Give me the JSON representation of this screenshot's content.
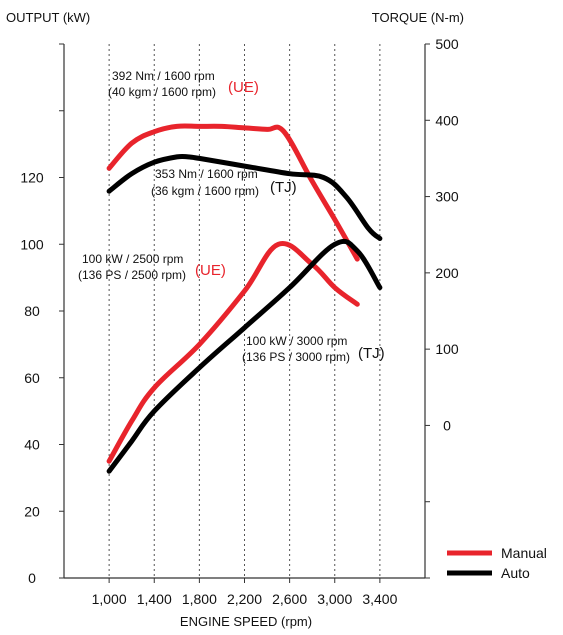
{
  "chart_data": {
    "type": "line",
    "title": "",
    "xlabel": "ENGINE SPEED (rpm)",
    "ylabel_left": "OUTPUT (kW)",
    "ylabel_right": "TORQUE (N-m)",
    "x_ticks": [
      "1,000",
      "1,400",
      "1,800",
      "2,200",
      "2,600",
      "3,000",
      "3,400"
    ],
    "x_range": [
      600,
      3800
    ],
    "y_left_ticks": [
      "0",
      "20",
      "40",
      "60",
      "80",
      "100",
      "120"
    ],
    "y_left_range": [
      0,
      160
    ],
    "y_right_ticks": [
      "0",
      "100",
      "200",
      "300",
      "400",
      "500"
    ],
    "y_right_range": [
      -200,
      500
    ],
    "grid": "vertical",
    "legend_position": "bottom-right",
    "colors": {
      "manual": "#e8242c",
      "auto": "#000000"
    },
    "series": [
      {
        "name": "Manual",
        "color": "#e8242c",
        "axis": "right",
        "x": [
          1000,
          1200,
          1400,
          1600,
          1800,
          2000,
          2200,
          2400,
          2550,
          2800,
          3000,
          3200
        ],
        "y": [
          337,
          370,
          385,
          392,
          392,
          392,
          390,
          388,
          385,
          320,
          270,
          218
        ]
      },
      {
        "name": "Auto",
        "color": "#000000",
        "axis": "right",
        "x": [
          1000,
          1200,
          1400,
          1600,
          1700,
          1800,
          2200,
          2600,
          2900,
          3100,
          3300,
          3400
        ],
        "y": [
          307,
          330,
          345,
          352,
          352,
          350,
          340,
          330,
          325,
          300,
          258,
          245
        ]
      },
      {
        "name": "Manual",
        "color": "#e8242c",
        "axis": "left",
        "x": [
          1000,
          1200,
          1400,
          1800,
          2200,
          2500,
          2800,
          3000,
          3200
        ],
        "y": [
          35,
          47,
          57,
          70,
          86,
          100,
          94,
          87,
          82
        ]
      },
      {
        "name": "Auto",
        "color": "#000000",
        "axis": "left",
        "x": [
          1000,
          1200,
          1400,
          1800,
          2200,
          2600,
          3000,
          3200,
          3400
        ],
        "y": [
          32,
          41,
          50,
          63,
          75,
          87,
          100,
          98,
          87
        ]
      }
    ],
    "annotations": [
      {
        "lines": [
          "392 Nm / 1600 rpm",
          "(40 kgm / 1600 rpm)"
        ],
        "tag": "(UE)",
        "tag_color": "#e8242c"
      },
      {
        "lines": [
          "353 Nm / 1600 rpm",
          "(36 kgm / 1600 rpm)"
        ],
        "tag": "(TJ)",
        "tag_color": "#000000"
      },
      {
        "lines": [
          "100 kW / 2500 rpm",
          "(136 PS / 2500 rpm)"
        ],
        "tag": "(UE)",
        "tag_color": "#e8242c"
      },
      {
        "lines": [
          "100 kW / 3000 rpm",
          "(136 PS / 3000 rpm)"
        ],
        "tag": "(TJ)",
        "tag_color": "#000000"
      }
    ],
    "legend": [
      {
        "label": "Manual",
        "color": "#e8242c"
      },
      {
        "label": "Auto",
        "color": "#000000"
      }
    ]
  }
}
